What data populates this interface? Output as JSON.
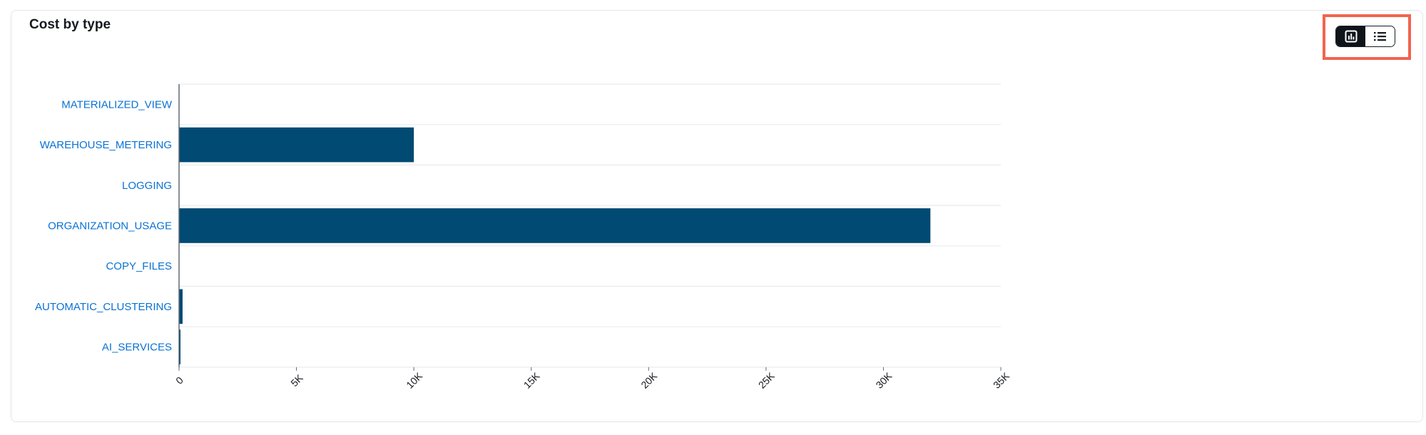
{
  "card": {
    "title": "Cost by type"
  },
  "view_toggle": {
    "options": [
      {
        "name": "chart-view",
        "icon": "bar-chart-icon",
        "selected": true
      },
      {
        "name": "table-view",
        "icon": "list-icon",
        "selected": false
      }
    ]
  },
  "colors": {
    "bar": "#004a73",
    "category_label": "#0972d3",
    "highlight": "#f2644f",
    "gridline": "#e9ebed",
    "axis": "#5f6b7a"
  },
  "chart_data": {
    "type": "bar",
    "orientation": "horizontal",
    "title": "Cost by type",
    "categories": [
      "MATERIALIZED_VIEW",
      "WAREHOUSE_METERING",
      "LOGGING",
      "ORGANIZATION_USAGE",
      "COPY_FILES",
      "AUTOMATIC_CLUSTERING",
      "AI_SERVICES"
    ],
    "values": [
      0,
      10000,
      0,
      32000,
      0,
      150,
      60
    ],
    "xlim": [
      0,
      35000
    ],
    "xticks": [
      0,
      5000,
      10000,
      15000,
      20000,
      25000,
      30000,
      35000
    ],
    "xtick_labels": [
      "0",
      "5K",
      "10K",
      "15K",
      "20K",
      "25K",
      "30K",
      "35K"
    ],
    "xlabel": "",
    "ylabel": "",
    "grid": true,
    "legend": "none"
  }
}
